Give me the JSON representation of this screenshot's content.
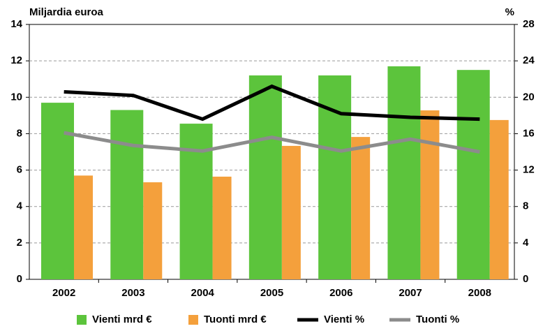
{
  "chart_data": {
    "type": "bar_line",
    "ylabel": "Miljardia euroa",
    "y2label": "%",
    "categories": [
      "2002",
      "2003",
      "2004",
      "2005",
      "2006",
      "2007",
      "2008"
    ],
    "series": [
      {
        "name": "Vienti mrd €",
        "type": "bar",
        "color": "#5cc43c",
        "values": [
          9.7,
          9.3,
          8.55,
          11.2,
          11.2,
          11.7,
          11.5
        ]
      },
      {
        "name": "Tuonti mrd €",
        "type": "bar",
        "color": "#f4a03c",
        "values": [
          5.7,
          5.33,
          5.64,
          7.33,
          7.82,
          9.28,
          8.75
        ]
      },
      {
        "name": "Vienti %",
        "type": "line",
        "axis": "y2",
        "color": "#000000",
        "values": [
          20.6,
          20.2,
          17.6,
          21.2,
          18.2,
          17.8,
          17.6
        ]
      },
      {
        "name": "Tuonti %",
        "type": "line",
        "axis": "y2",
        "color": "#8c8c8c",
        "values": [
          16.1,
          14.7,
          14.1,
          15.6,
          14.1,
          15.4,
          14.0
        ]
      }
    ],
    "ylim": [
      0,
      14
    ],
    "yticks": [
      0,
      2,
      4,
      6,
      8,
      10,
      12,
      14
    ],
    "y2lim": [
      0,
      28
    ],
    "y2ticks": [
      0,
      4,
      8,
      12,
      16,
      20,
      24,
      28
    ],
    "grid": true,
    "legend": "bottom"
  }
}
